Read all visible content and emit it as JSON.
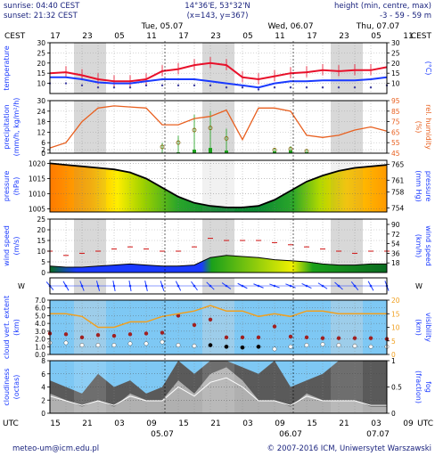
{
  "header": {
    "sunrise": "sunrise: 04:40 CEST",
    "sunset": "sunset: 21:32 CEST",
    "coords": "14°36'E, 53°32'N",
    "grid": "(x=143, y=367)",
    "height_title": "height (min, centre, max)",
    "height_values": "-3 - 59 - 59 m"
  },
  "top_axis": {
    "tz_left": "CEST",
    "tz_right": "CEST",
    "hour_labels": [
      "17",
      "23",
      "05",
      "11",
      "17",
      "23",
      "05",
      "11",
      "17",
      "23",
      "05",
      "11"
    ],
    "day_labels": [
      "Tue, 05.07",
      "Wed, 06.07",
      "Thu, 07.07"
    ]
  },
  "bottom_axis": {
    "tz_left": "UTC",
    "tz_right": "UTC",
    "hour_labels": [
      "15",
      "21",
      "03",
      "09",
      "15",
      "21",
      "03",
      "09",
      "15",
      "21",
      "03",
      "09"
    ],
    "day_labels": [
      "05.07",
      "06.07",
      "07.07"
    ]
  },
  "footer": {
    "email": "meteo-um@icm.edu.pl",
    "copyright": "© 2007-2016 ICM, Uniwersytet Warszawski"
  },
  "colors": {
    "night": "#d8d8d8",
    "temperature": "#e8102a",
    "dewpoint": "#1a3aff",
    "humidity": "#e86020",
    "precip": "#1aa01a",
    "pressure_line": "#000000",
    "wind_line": "#1a3aff",
    "gust": "#d01010",
    "sky": "#7ec8f4",
    "cloud_dark": "#5a5a5a",
    "cloud_light": "#b0b0b0",
    "visibility": "#f0a020"
  },
  "chart_data": [
    {
      "type": "line",
      "id": "temperature",
      "ylabel": "temperature",
      "ylabel_right": "(°C)",
      "ylim": [
        5,
        30
      ],
      "yticks": [
        10,
        15,
        20,
        25,
        30
      ],
      "x_hours": [
        0,
        3,
        6,
        9,
        12,
        15,
        18,
        21,
        24,
        27,
        30,
        33,
        36,
        39,
        42,
        45,
        48,
        51,
        54,
        57,
        60,
        63
      ],
      "series": [
        {
          "values": [
            15,
            15.5,
            14,
            12,
            11,
            11,
            12,
            16,
            17,
            19,
            20,
            19,
            13,
            12,
            13.5,
            15,
            15.5,
            16.5,
            16,
            16.5,
            16.5,
            18
          ]
        },
        {
          "values": [
            13,
            13,
            12,
            10.5,
            10,
            10,
            11,
            12,
            12,
            12,
            11,
            10,
            9,
            8,
            10,
            11,
            11,
            11.5,
            11.5,
            11.5,
            12,
            13
          ]
        }
      ],
      "wet_bulb": [
        10,
        10,
        9,
        8,
        8,
        8,
        9,
        9,
        9,
        9,
        9,
        8,
        8,
        7,
        8,
        8,
        8,
        8,
        8,
        8,
        8,
        9
      ]
    },
    {
      "type": "bar",
      "id": "precipitation",
      "ylabel": "precipitation",
      "ylabel2": "(mm/h, kg/m²/h)",
      "ylabel_right": "(%)",
      "ylabel_right2": "rel. humidity",
      "ylim": [
        0,
        30
      ],
      "yticks": [
        0,
        2,
        6,
        12,
        18,
        24,
        30
      ],
      "yticks_right": [
        45,
        55,
        65,
        75,
        85,
        95
      ],
      "x_hours": [
        0,
        3,
        6,
        9,
        12,
        15,
        18,
        21,
        24,
        27,
        30,
        33,
        36,
        39,
        42,
        45,
        48,
        51,
        54,
        57,
        60,
        63
      ],
      "precip_values": [
        0,
        0,
        0,
        0,
        0,
        0,
        0,
        0,
        0.5,
        2,
        3,
        1.5,
        0,
        0,
        1,
        1.5,
        0.5,
        0,
        0,
        0,
        0,
        0
      ],
      "precip_max": [
        0,
        0,
        0,
        0,
        0,
        0,
        0,
        6,
        10,
        22,
        24,
        14,
        0,
        0,
        3,
        4,
        2,
        0,
        0,
        0,
        0,
        0
      ],
      "humidity": [
        50,
        55,
        75,
        88,
        90,
        89,
        88,
        72,
        72,
        78,
        80,
        86,
        58,
        88,
        88,
        85,
        62,
        60,
        62,
        67,
        70,
        66
      ]
    },
    {
      "type": "area",
      "id": "pressure",
      "ylabel": "pressure",
      "ylabel2": "(hPa)",
      "ylabel_right": "(mm Hg)",
      "ylabel_right2": "pressure",
      "ylim": [
        1004,
        1021
      ],
      "yticks": [
        1005,
        1010,
        1015,
        1020
      ],
      "yticks_right": [
        754,
        758,
        761,
        765
      ],
      "x_hours": [
        0,
        3,
        6,
        9,
        12,
        15,
        18,
        21,
        24,
        27,
        30,
        33,
        36,
        39,
        42,
        45,
        48,
        51,
        54,
        57,
        60,
        63
      ],
      "values": [
        1020,
        1019.5,
        1019,
        1018.5,
        1018,
        1017,
        1015,
        1012,
        1009,
        1007,
        1006,
        1005.5,
        1005.5,
        1006,
        1008,
        1011,
        1014,
        1016,
        1017.5,
        1018.5,
        1019,
        1019.5
      ]
    },
    {
      "type": "area",
      "id": "wind",
      "ylabel": "wind speed",
      "ylabel2": "(m/s)",
      "ylabel_right": "(km/h)",
      "ylabel_right2": "wind speed",
      "ylim": [
        0,
        25
      ],
      "yticks": [
        0,
        5,
        10,
        15,
        20,
        25
      ],
      "yticks_right": [
        18,
        36,
        54,
        72,
        90
      ],
      "x_hours": [
        0,
        3,
        6,
        9,
        12,
        15,
        18,
        21,
        24,
        27,
        30,
        33,
        36,
        39,
        42,
        45,
        48,
        51,
        54,
        57,
        60,
        63
      ],
      "values": [
        3,
        2.5,
        2.5,
        3,
        3.5,
        4,
        3.5,
        3,
        3,
        3.5,
        7,
        8,
        7.5,
        7,
        6,
        5.5,
        5,
        4,
        3.5,
        3.5,
        4,
        4
      ],
      "gusts": [
        10,
        8,
        9,
        10,
        11,
        12,
        11,
        10,
        10,
        12,
        16,
        15,
        15,
        15,
        14,
        13,
        12,
        11,
        10,
        9,
        10,
        10
      ]
    },
    {
      "type": "scatter",
      "id": "wind_direction",
      "ylabel": "W/S/N/E",
      "x_hours": [
        0,
        3,
        6,
        9,
        12,
        15,
        18,
        21,
        24,
        27,
        30,
        33,
        36,
        39,
        42,
        45,
        48,
        51,
        54,
        57,
        60,
        63
      ]
    },
    {
      "type": "scatter",
      "id": "cloud_extent",
      "ylabel": "cloud vert. extent",
      "ylabel2": "(km)",
      "ylabel_right": "(km)",
      "ylabel_right2": "visibility",
      "ylim": [
        0,
        7
      ],
      "yticks": [
        0,
        1,
        2,
        3,
        4,
        5,
        6,
        7
      ],
      "yticks_labels": [
        "0.0",
        "1.0",
        "2.0",
        "3.0",
        "4.0",
        "5.0",
        "6.0",
        "7.0"
      ],
      "yticks_right": [
        0,
        5,
        10,
        15,
        20
      ],
      "x_hours": [
        0,
        3,
        6,
        9,
        12,
        15,
        18,
        21,
        24,
        27,
        30,
        33,
        36,
        39,
        42,
        45,
        48,
        51,
        54,
        57,
        60,
        63
      ],
      "cloud_top": [
        2.7,
        2.6,
        2.2,
        2.5,
        2.4,
        2.6,
        2.7,
        2.8,
        5,
        3.8,
        4.5,
        2.2,
        2.2,
        2.2,
        3.6,
        2.3,
        2.2,
        2.1,
        2.1,
        2.1,
        2.1,
        2.0
      ],
      "cloud_base": [
        1.5,
        1.5,
        1.2,
        1.2,
        1.2,
        1.4,
        1.4,
        1.6,
        1.2,
        1.1,
        1.2,
        1.0,
        0.9,
        1.0,
        0.7,
        1.0,
        1.2,
        1.3,
        1.2,
        1.1,
        1.0,
        1.0
      ],
      "visibility": [
        15,
        15,
        14,
        10,
        10,
        12,
        12,
        14,
        15,
        16,
        18,
        16,
        16,
        14,
        15,
        14,
        16,
        16,
        15,
        15,
        15,
        15
      ]
    },
    {
      "type": "area",
      "id": "cloudiness",
      "ylabel": "cloudiness",
      "ylabel2": "(octas)",
      "ylabel_right": "(fraction)",
      "ylabel_right2": "fog",
      "ylim": [
        0,
        8
      ],
      "yticks": [
        0,
        2,
        4,
        6,
        8
      ],
      "yticks_right": [
        0,
        0.5,
        1
      ],
      "x_hours": [
        0,
        3,
        6,
        9,
        12,
        15,
        18,
        21,
        24,
        27,
        30,
        33,
        36,
        39,
        42,
        45,
        48,
        51,
        54,
        57,
        60,
        63
      ],
      "high": [
        5,
        4,
        3,
        6,
        4,
        5,
        3,
        4,
        8,
        6,
        8,
        8,
        7,
        6,
        8,
        4,
        5,
        6,
        8,
        8,
        8,
        8
      ],
      "low": [
        3,
        2,
        1,
        2,
        1,
        3,
        2,
        2,
        5,
        3,
        6,
        7,
        5,
        2,
        2,
        1,
        3,
        2,
        2,
        2,
        1,
        1
      ],
      "fog": [
        0,
        0,
        0,
        0,
        0,
        0,
        0,
        0,
        0.1,
        0,
        0,
        0,
        0,
        0.1,
        0,
        0,
        0,
        0,
        0,
        0,
        0,
        0
      ]
    }
  ]
}
